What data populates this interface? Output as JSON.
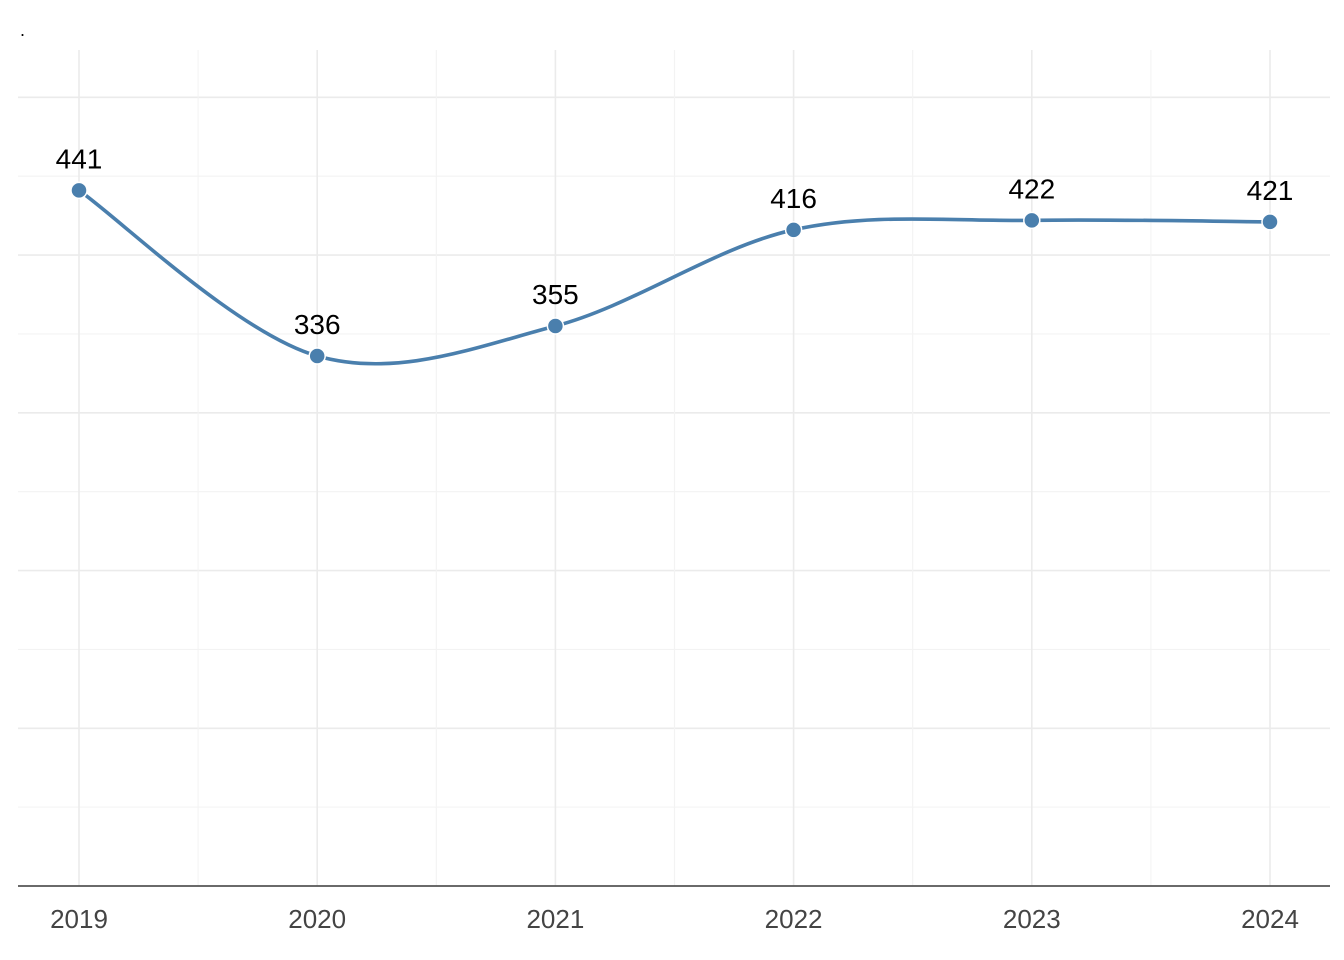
{
  "chart_data": {
    "type": "line",
    "title": ".",
    "xlabel": "",
    "ylabel": "",
    "x": [
      "2019",
      "2020",
      "2021",
      "2022",
      "2023",
      "2024"
    ],
    "series": [
      {
        "values": [
          441,
          336,
          355,
          416,
          422,
          421
        ]
      }
    ],
    "data_labels": [
      "441",
      "336",
      "355",
      "416",
      "422",
      "421"
    ],
    "ylim": [
      0,
      530
    ],
    "y_major_step": 100,
    "y_minor_step": 50,
    "smooth": true,
    "grid": true,
    "legend": "none",
    "colors": {
      "line": "#4a7fad",
      "point": "#4a7fad",
      "grid": "#ebebeb",
      "axis": "#555555"
    }
  }
}
